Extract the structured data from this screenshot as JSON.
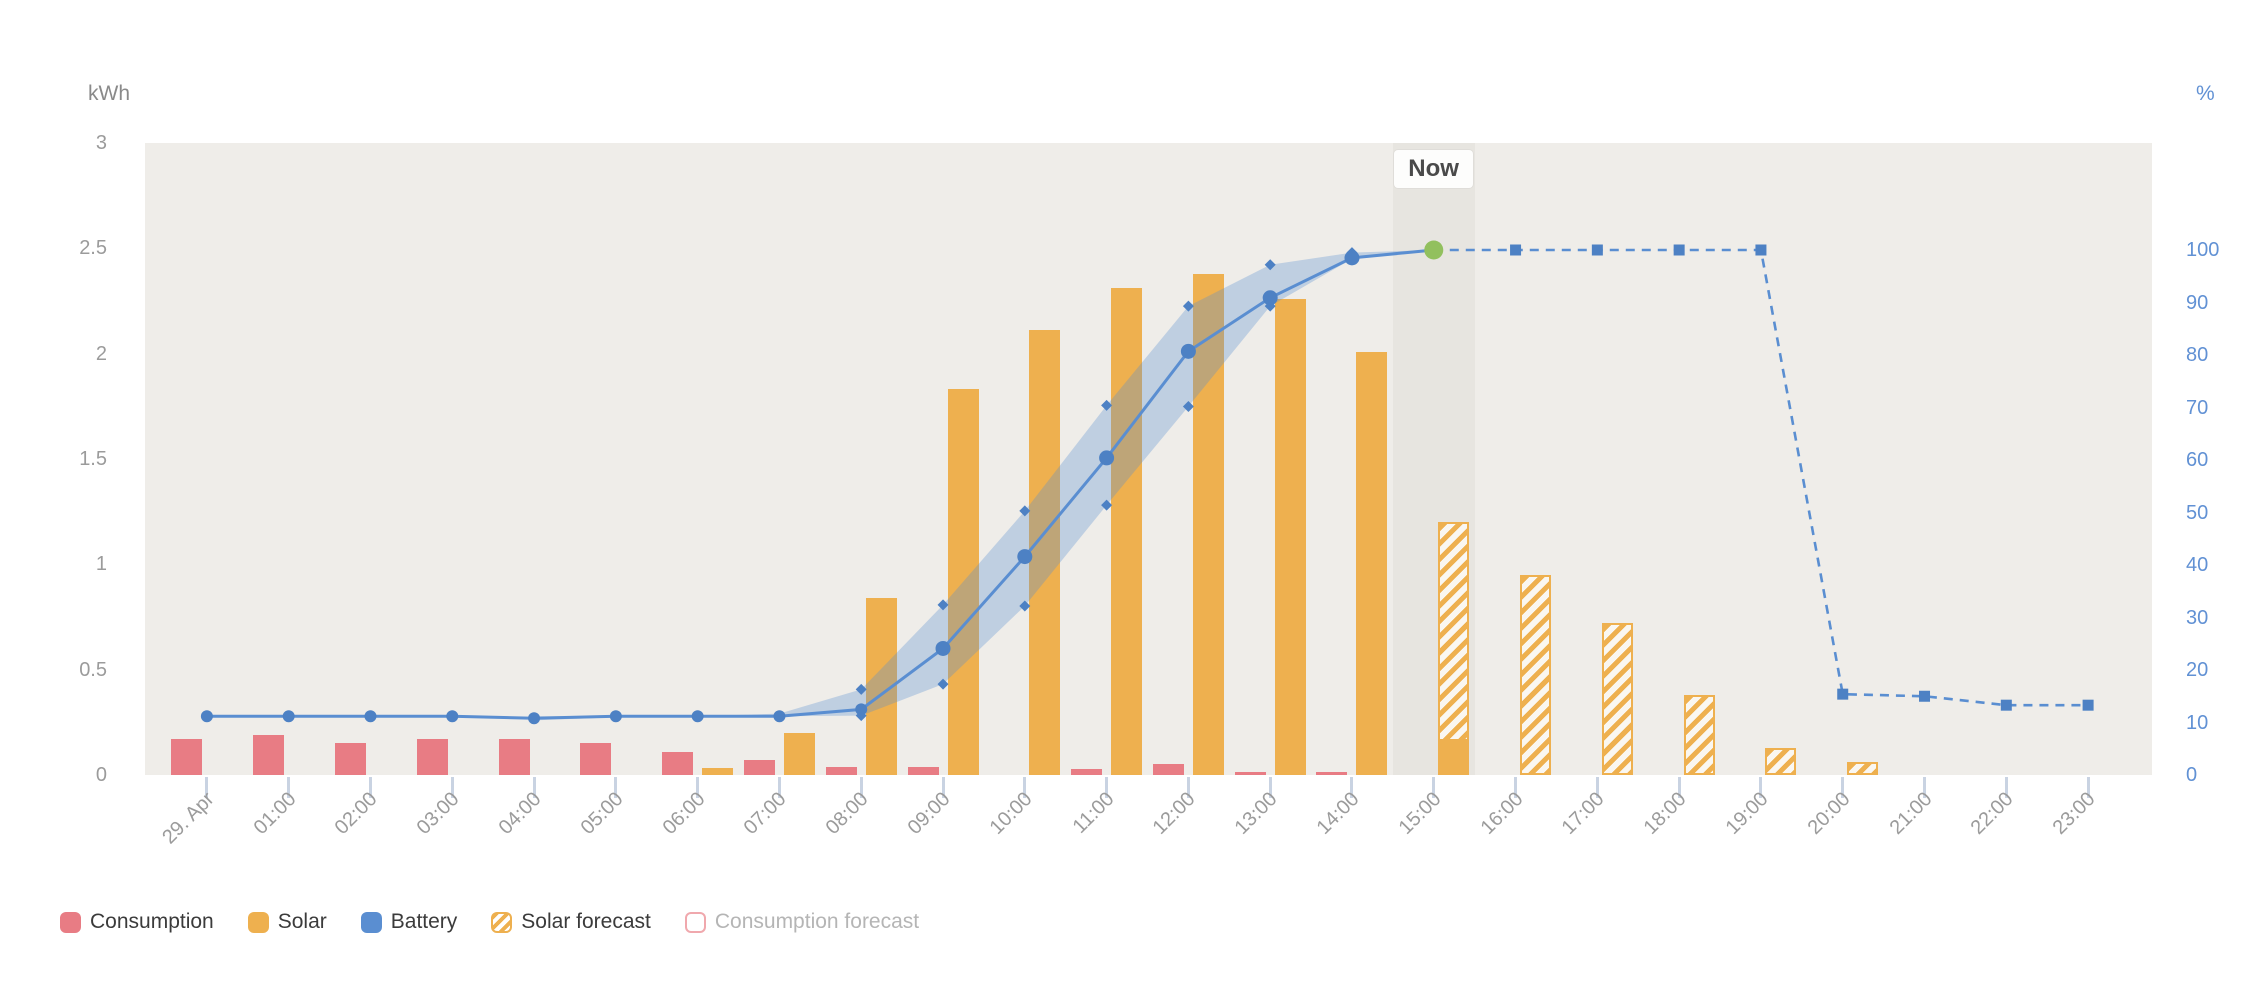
{
  "chart_data": {
    "type": "mixed",
    "title": "",
    "categories": [
      "29. Apr",
      "01:00",
      "02:00",
      "03:00",
      "04:00",
      "05:00",
      "06:00",
      "07:00",
      "08:00",
      "09:00",
      "10:00",
      "11:00",
      "12:00",
      "13:00",
      "14:00",
      "15:00",
      "16:00",
      "17:00",
      "18:00",
      "19:00",
      "20:00",
      "21:00",
      "22:00",
      "23:00"
    ],
    "left_axis": {
      "label": "kWh",
      "ticks": [
        "0",
        "0.5",
        "1",
        "1.5",
        "2",
        "2.5",
        "3"
      ],
      "tick_values": [
        0,
        0.5,
        1,
        1.5,
        2,
        2.5,
        3
      ],
      "range": [
        0,
        3
      ]
    },
    "right_axis": {
      "label": "%",
      "ticks": [
        "0",
        "10",
        "20",
        "30",
        "40",
        "50",
        "60",
        "70",
        "80",
        "90",
        "100"
      ],
      "tick_values": [
        0,
        10,
        20,
        30,
        40,
        50,
        60,
        70,
        80,
        90,
        100
      ],
      "range": [
        0,
        120
      ]
    },
    "now": {
      "label": "Now",
      "index": 15
    },
    "grid": false,
    "legend_position": "bottom-left",
    "series": [
      {
        "name": "Consumption",
        "type": "bar",
        "axis": "left",
        "color": "#e87c84",
        "values": [
          0.17,
          0.19,
          0.15,
          0.17,
          0.17,
          0.15,
          0.11,
          0.07,
          0.04,
          0.04,
          0,
          0.03,
          0.05,
          0.015,
          0.015,
          0,
          0,
          0,
          0,
          0,
          0,
          0,
          0,
          0
        ]
      },
      {
        "name": "Solar",
        "type": "bar",
        "axis": "left",
        "color": "#eeb04f",
        "values": [
          0,
          0,
          0,
          0,
          0,
          0,
          0.035,
          0.2,
          0.84,
          1.83,
          2.11,
          2.31,
          2.38,
          2.26,
          2.01,
          0.17,
          0,
          0,
          0,
          0,
          0,
          0,
          0,
          0
        ]
      },
      {
        "name": "Solar forecast",
        "type": "bar",
        "style": "hatched",
        "axis": "left",
        "color": "#eeb04f",
        "values": [
          0,
          0,
          0,
          0,
          0,
          0,
          0,
          0,
          0,
          0,
          0,
          0,
          0,
          0,
          0,
          1.2,
          0.95,
          0.72,
          0.38,
          0.13,
          0.06,
          0,
          0,
          0
        ]
      },
      {
        "name": "Consumption forecast",
        "type": "bar",
        "style": "outline",
        "axis": "left",
        "color": "#e87c84",
        "values": [
          0,
          0,
          0,
          0,
          0,
          0,
          0,
          0,
          0,
          0,
          0,
          0,
          0,
          0,
          0,
          0,
          0,
          0,
          0,
          0,
          0,
          0,
          0,
          0
        ]
      },
      {
        "name": "Battery",
        "type": "line",
        "axis": "right",
        "color": "#5a8ed1",
        "marker_color": "#4d81c4",
        "actual_hours": [
          0,
          1,
          2,
          3,
          4,
          5,
          6,
          7,
          8,
          9,
          10,
          11,
          12,
          13,
          14,
          15
        ],
        "actual": [
          11.2,
          11.2,
          11.2,
          11.2,
          10.8,
          11.2,
          11.2,
          11.2,
          12.5,
          24.1,
          41.6,
          60.4,
          80.7,
          90.9,
          98.5,
          100
        ],
        "forecast_hours": [
          15,
          16,
          17,
          18,
          19,
          20,
          21,
          22,
          23
        ],
        "forecast": [
          100,
          100,
          100,
          100,
          100,
          15.4,
          15.0,
          13.3,
          13.3
        ],
        "forecast_style": "dashed",
        "now_point": {
          "hour": 15,
          "value": 100,
          "color": "#92c05e"
        },
        "band": {
          "start_hour": 4,
          "hours": [
            4,
            5,
            6,
            7,
            8,
            9,
            10,
            11,
            12,
            13,
            14,
            15
          ],
          "lower": [
            10.4,
            11.0,
            11.2,
            11.2,
            11.3,
            17.3,
            32.2,
            51.4,
            70.2,
            89.3,
            98.3,
            100
          ],
          "upper": [
            11.2,
            11.2,
            11.2,
            11.7,
            16.3,
            32.4,
            50.3,
            70.4,
            89.3,
            97.2,
            99.5,
            100
          ],
          "fill": "#5b8fd0",
          "opacity": 0.32
        }
      }
    ],
    "legend": {
      "items": [
        {
          "label": "Consumption",
          "swatch": "solid",
          "color": "#e87c84",
          "muted": false
        },
        {
          "label": "Solar",
          "swatch": "solid",
          "color": "#eeb04f",
          "muted": false
        },
        {
          "label": "Battery",
          "swatch": "solid",
          "color": "#5a8ed1",
          "muted": false
        },
        {
          "label": "Solar forecast",
          "swatch": "hatched",
          "color": "#eeb04f",
          "muted": false
        },
        {
          "label": "Consumption forecast",
          "swatch": "outline",
          "color": "#e87c84",
          "muted": true
        }
      ]
    },
    "colors": {
      "plot_background": "#efede9",
      "now_band": "#e7e5e0",
      "axis_text": "#9b9b9b",
      "right_axis_text": "#6191d4",
      "tick_mark": "#c9d3e2",
      "now_text": "#4a4a4a"
    }
  }
}
